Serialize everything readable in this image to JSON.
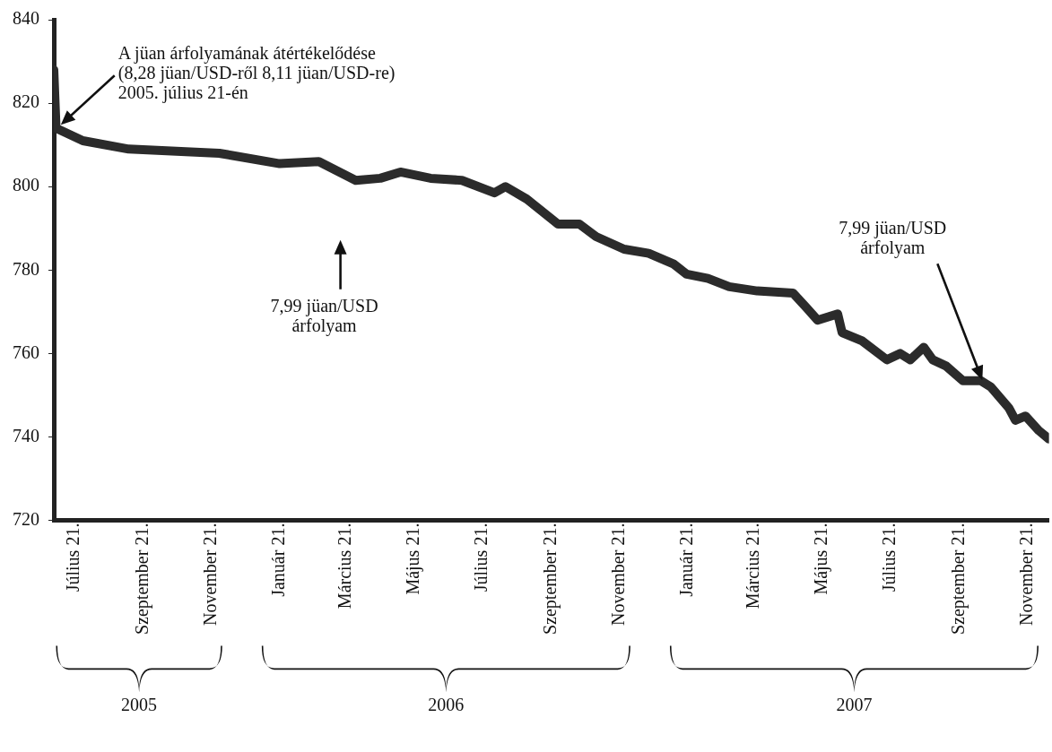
{
  "chart_data": {
    "type": "line",
    "x": [
      "2005-07-03",
      "2005-07-05",
      "2005-07-29",
      "2005-09-08",
      "2005-11-28",
      "2006-01-21",
      "2006-02-25",
      "2006-03-30",
      "2006-04-21",
      "2006-05-09",
      "2006-06-05",
      "2006-07-03",
      "2006-08-01",
      "2006-08-11",
      "2006-08-30",
      "2006-09-27",
      "2006-10-16",
      "2006-10-31",
      "2006-11-25",
      "2006-12-17",
      "2007-01-08",
      "2007-01-20",
      "2007-02-08",
      "2007-02-27",
      "2007-03-24",
      "2007-04-25",
      "2007-05-07",
      "2007-05-17",
      "2007-06-04",
      "2007-06-08",
      "2007-06-26",
      "2007-07-18",
      "2007-07-30",
      "2007-08-08",
      "2007-08-20",
      "2007-08-28",
      "2007-09-09",
      "2007-09-24",
      "2007-10-10",
      "2007-10-19",
      "2007-11-04",
      "2007-11-10",
      "2007-11-19",
      "2007-12-01",
      "2007-12-10"
    ],
    "series": [
      {
        "color": "#2b2b2b",
        "values": [
          828,
          814,
          811,
          809,
          808,
          805.5,
          806,
          801.5,
          802,
          803.5,
          802,
          801.5,
          798.5,
          800,
          797,
          791,
          791,
          788,
          785,
          784,
          781.5,
          779,
          778,
          776,
          775,
          774.5,
          771,
          768,
          769.5,
          765,
          763,
          758.5,
          760,
          758.5,
          761.5,
          758.5,
          757,
          753.5,
          753.5,
          752,
          747,
          744,
          745,
          741.5,
          739.5
        ]
      }
    ],
    "xlim": [
      "2005-07-03",
      "2007-12-10"
    ],
    "xticks": [
      {
        "value": "2005-07-21",
        "label": "Július 21."
      },
      {
        "value": "2005-09-21",
        "label": "Szeptember 21."
      },
      {
        "value": "2005-11-21",
        "label": "November 21."
      },
      {
        "value": "2006-01-21",
        "label": "Január 21."
      },
      {
        "value": "2006-03-21",
        "label": "Március 21."
      },
      {
        "value": "2006-05-21",
        "label": "Május 21."
      },
      {
        "value": "2006-07-21",
        "label": "Július 21."
      },
      {
        "value": "2006-09-21",
        "label": "Szeptember 21."
      },
      {
        "value": "2006-11-21",
        "label": "November 21."
      },
      {
        "value": "2007-01-21",
        "label": "Január 21."
      },
      {
        "value": "2007-03-21",
        "label": "Március 21."
      },
      {
        "value": "2007-05-21",
        "label": "Május 21."
      },
      {
        "value": "2007-07-21",
        "label": "Július 21."
      },
      {
        "value": "2007-09-21",
        "label": "Szeptember 21."
      },
      {
        "value": "2007-11-21",
        "label": "November 21."
      }
    ],
    "ylim": [
      720,
      840
    ],
    "yticks": [
      720,
      740,
      760,
      780,
      800,
      820,
      840
    ],
    "grid": false,
    "legend": false,
    "marker": "none",
    "line_style": "solid",
    "annotations": [
      "A jüan árfolyamának átértékelődése\n(8,28 jüan/USD-ről 8,11 jüan/USD-re)\n2005. július 21-én",
      "7,99 jüan/USD\nárfolyam",
      "7,99 jüan/USD\nárfolyam",
      "2005",
      "2006",
      "2007"
    ]
  }
}
